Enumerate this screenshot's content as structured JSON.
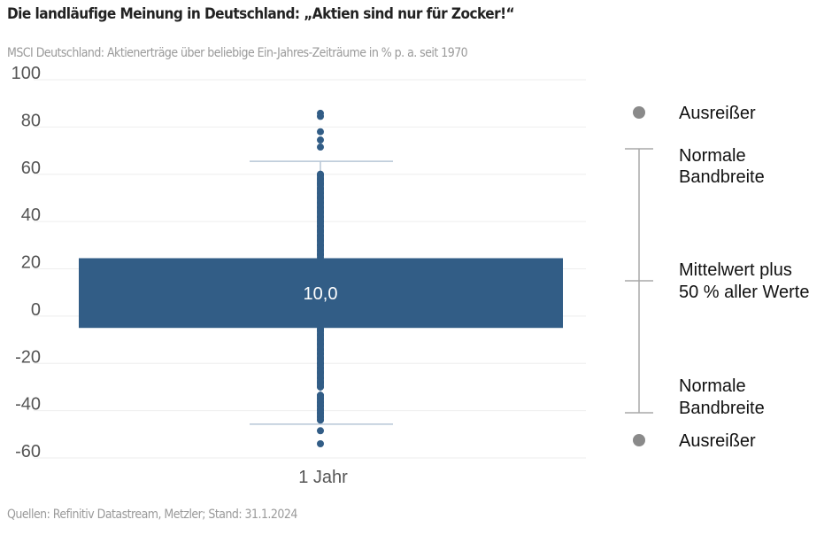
{
  "title": "Die landläufige Meinung in Deutschland: „Aktien sind nur für Zocker!“",
  "subtitle": "MSCI Deutschland: Aktienerträge über beliebige Ein-Jahres-Zeiträume in % p. a. seit 1970",
  "source": "Quellen: Refinitiv Datastream, Metzler; Stand: 31.1.2024",
  "colors": {
    "box": "#325d86",
    "whisker": "#b7c6d6",
    "legend": "#8a8a8a",
    "grid": "#eeeeee"
  },
  "chart_data": {
    "type": "boxplot",
    "categories": [
      "1 Jahr"
    ],
    "ylim": [
      -60,
      100
    ],
    "yticks": [
      "100",
      "80",
      "60",
      "40",
      "20",
      "0",
      "-20",
      "-40",
      "-60"
    ],
    "ytick_values": [
      100,
      80,
      60,
      40,
      20,
      0,
      -20,
      -40,
      -60
    ],
    "grid": true,
    "box": {
      "q1": -5,
      "q3": 24.5,
      "label": "10,0",
      "whisker_low": -45.7,
      "whisker_high": 65.5
    },
    "points": [
      85.8,
      84.5,
      78,
      74.5,
      71.5,
      60,
      58,
      56,
      54,
      52,
      50,
      48,
      46,
      44,
      42,
      40,
      38,
      36,
      34,
      32,
      30,
      28,
      26,
      -6,
      -8,
      -10,
      -12,
      -14,
      -16,
      -18,
      -20,
      -22,
      -24,
      -26,
      -28,
      -30,
      -33.5,
      -35,
      -36.5,
      -38,
      -39.5,
      -41,
      -42.5,
      -44,
      -48.5,
      -54
    ],
    "legend_placement": "right",
    "legend": {
      "outlier_top": "Ausreißer",
      "band_top": [
        "Normale",
        "Bandbreite"
      ],
      "middle": [
        "Mittelwert plus",
        "50 % aller Werte"
      ],
      "band_bottom": [
        "Normale",
        "Bandbreite"
      ],
      "outlier_bottom": "Ausreißer"
    }
  }
}
